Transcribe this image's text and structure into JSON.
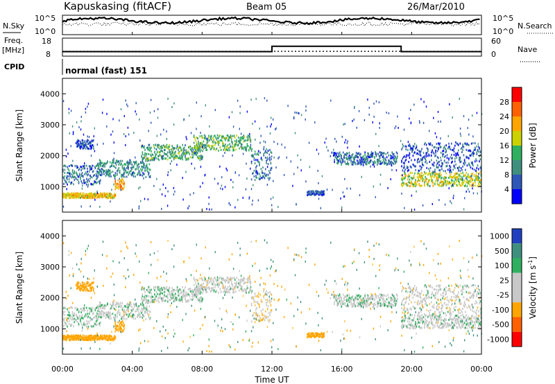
{
  "header": {
    "station": "Kapuskasing (fitACF)",
    "beam": "Beam 05",
    "date": "26/Mar/2010"
  },
  "panels": {
    "nsky": {
      "label": "N.Sky",
      "tick_top": "10^5",
      "tick_bottom": "10^0",
      "right_label": "N.Search"
    },
    "freq": {
      "label_line1": "Freq.",
      "label_line2": "[MHz]",
      "left_ticks": [
        "18",
        "8"
      ],
      "right_ticks": [
        "60",
        "0"
      ],
      "right_label": "Nave"
    },
    "cpid": {
      "label": "CPID",
      "text": "normal (fast) 151"
    }
  },
  "colors": {
    "power_scale": [
      "#0000ff",
      "#2f57b8",
      "#3f8f7f",
      "#2fb060",
      "#cbd200",
      "#ffa500",
      "#ff6000",
      "#ff0000"
    ],
    "velocity_scale": [
      "#ff0000",
      "#ff6000",
      "#ffa500",
      "#c8c8c8",
      "#c8c8c8",
      "#2fb060",
      "#3f8f7f",
      "#2040c0"
    ]
  },
  "chart_data": [
    {
      "type": "heatmap",
      "name": "power",
      "ylabel": "Slant Range [km]",
      "ylim": [
        180,
        4500
      ],
      "yticks": [
        "1000",
        "2000",
        "3000",
        "4000"
      ],
      "xlim": [
        0,
        24
      ],
      "colorbar_label": "Power [dB]",
      "colorbar_ticks": [
        "4",
        "8",
        "12",
        "16",
        "20",
        "24",
        "28"
      ]
    },
    {
      "type": "heatmap",
      "name": "velocity",
      "ylabel": "Slant Range [km]",
      "ylim": [
        180,
        4500
      ],
      "yticks": [
        "1000",
        "2000",
        "3000",
        "4000"
      ],
      "xlim": [
        0,
        24
      ],
      "xlabel": "Time UT",
      "xticks": [
        "00:00",
        "04:00",
        "08:00",
        "12:00",
        "16:00",
        "20:00",
        "00:00"
      ],
      "colorbar_label": "Velocity [m s^-1]",
      "colorbar_ticks": [
        "1000",
        "500",
        "100",
        "25",
        "-25",
        "-100",
        "-500",
        "-1000"
      ]
    }
  ],
  "series": {
    "frequency_mhz": [
      {
        "from": 0,
        "to": 12,
        "value": 10.5
      },
      {
        "from": 12,
        "to": 19.4,
        "value": 13.5
      },
      {
        "from": 19.4,
        "to": 24,
        "value": 10.5
      }
    ],
    "nave": [
      {
        "from": 0,
        "to": 24,
        "value": 16
      }
    ],
    "echo_bands": [
      {
        "name": "morning-band-low",
        "t0": 0.0,
        "t1": 3.0,
        "r0": 620,
        "r1": 780,
        "power": 20,
        "vel": -140
      },
      {
        "name": "morning-band-upper",
        "t0": 0.0,
        "t1": 2.2,
        "r0": 1050,
        "r1": 1700,
        "power": 8,
        "vel": 15
      },
      {
        "name": "arc-a",
        "t0": 2.0,
        "t1": 5.0,
        "r0": 1300,
        "r1": 1850,
        "power": 10,
        "vel": 10
      },
      {
        "name": "arc-b",
        "t0": 4.5,
        "t1": 8.0,
        "r0": 1850,
        "r1": 2350,
        "power": 12,
        "vel": 10
      },
      {
        "name": "arc-c",
        "t0": 7.5,
        "t1": 10.8,
        "r0": 2150,
        "r1": 2650,
        "power": 14,
        "vel": 0
      },
      {
        "name": "decline",
        "t0": 10.8,
        "t1": 12.0,
        "r0": 1200,
        "r1": 2200,
        "power": 8,
        "vel": -20
      },
      {
        "name": "patch-east",
        "t0": 3.0,
        "t1": 3.5,
        "r0": 900,
        "r1": 1250,
        "power": 22,
        "vel": -320
      },
      {
        "name": "patch-west",
        "t0": 0.8,
        "t1": 1.8,
        "r0": 2200,
        "r1": 2500,
        "power": 6,
        "vel": -420
      },
      {
        "name": "afternoon",
        "t0": 15.5,
        "t1": 19.2,
        "r0": 1700,
        "r1": 2100,
        "power": 8,
        "vel": 10
      },
      {
        "name": "mid-lower",
        "t0": 14.0,
        "t1": 15.0,
        "r0": 700,
        "r1": 850,
        "power": 6,
        "vel": -300
      },
      {
        "name": "evening",
        "t0": 19.4,
        "t1": 24.0,
        "r0": 1000,
        "r1": 1450,
        "power": 18,
        "vel": 5
      },
      {
        "name": "evening-upper",
        "t0": 19.4,
        "t1": 24.0,
        "r0": 1450,
        "r1": 2400,
        "power": 6,
        "vel": 0
      }
    ]
  },
  "axes": {
    "x_label": "Time UT"
  }
}
